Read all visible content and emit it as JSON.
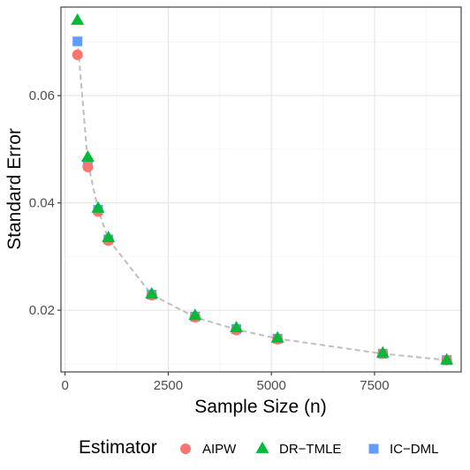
{
  "chart_data": {
    "type": "scatter",
    "xlabel": "Sample Size (n)",
    "ylabel": "Standard Error",
    "xlim": [
      -100,
      9600
    ],
    "ylim": [
      0.0085,
      0.0765
    ],
    "x_ticks": [
      0,
      2500,
      5000,
      7500
    ],
    "x_tick_labels": [
      "0",
      "2500",
      "5000",
      "7500"
    ],
    "y_ticks": [
      0.02,
      0.04,
      0.06
    ],
    "y_tick_labels": [
      "0.02",
      "0.04",
      "0.06"
    ],
    "grid": true,
    "legend": {
      "title": "Estimator",
      "position": "bottom"
    },
    "fit_line": {
      "style": "dashed",
      "color": "#bebebe",
      "x": [
        300,
        550,
        800,
        1050,
        2100,
        3150,
        4150,
        5150,
        7700,
        9250
      ],
      "y": [
        0.0705,
        0.0475,
        0.0388,
        0.0332,
        0.0229,
        0.0187,
        0.0164,
        0.0147,
        0.0119,
        0.0107
      ]
    },
    "series": [
      {
        "name": "AIPW",
        "marker": "circle",
        "color": "#F8766D",
        "x": [
          300,
          550,
          800,
          1050,
          2100,
          3150,
          4150,
          5150,
          7700,
          9250
        ],
        "y": [
          0.0676,
          0.0467,
          0.0384,
          0.033,
          0.0228,
          0.0187,
          0.0163,
          0.0146,
          0.0119,
          0.0107
        ]
      },
      {
        "name": "DR−TMLE",
        "marker": "triangle",
        "color": "#00BA38",
        "x": [
          300,
          550,
          800,
          1050,
          2100,
          3150,
          4150,
          5150,
          7700,
          9250
        ],
        "y": [
          0.074,
          0.0485,
          0.039,
          0.0335,
          0.023,
          0.019,
          0.0167,
          0.0148,
          0.012,
          0.0107
        ]
      },
      {
        "name": "IC−DML",
        "marker": "square",
        "color": "#619CFF",
        "x": [
          300,
          550,
          800,
          1050,
          2100,
          3150,
          4150,
          5150,
          7700,
          9250
        ],
        "y": [
          0.0701,
          0.0475,
          0.0387,
          0.0332,
          0.0229,
          0.0188,
          0.0165,
          0.0147,
          0.0119,
          0.0107
        ]
      }
    ]
  }
}
